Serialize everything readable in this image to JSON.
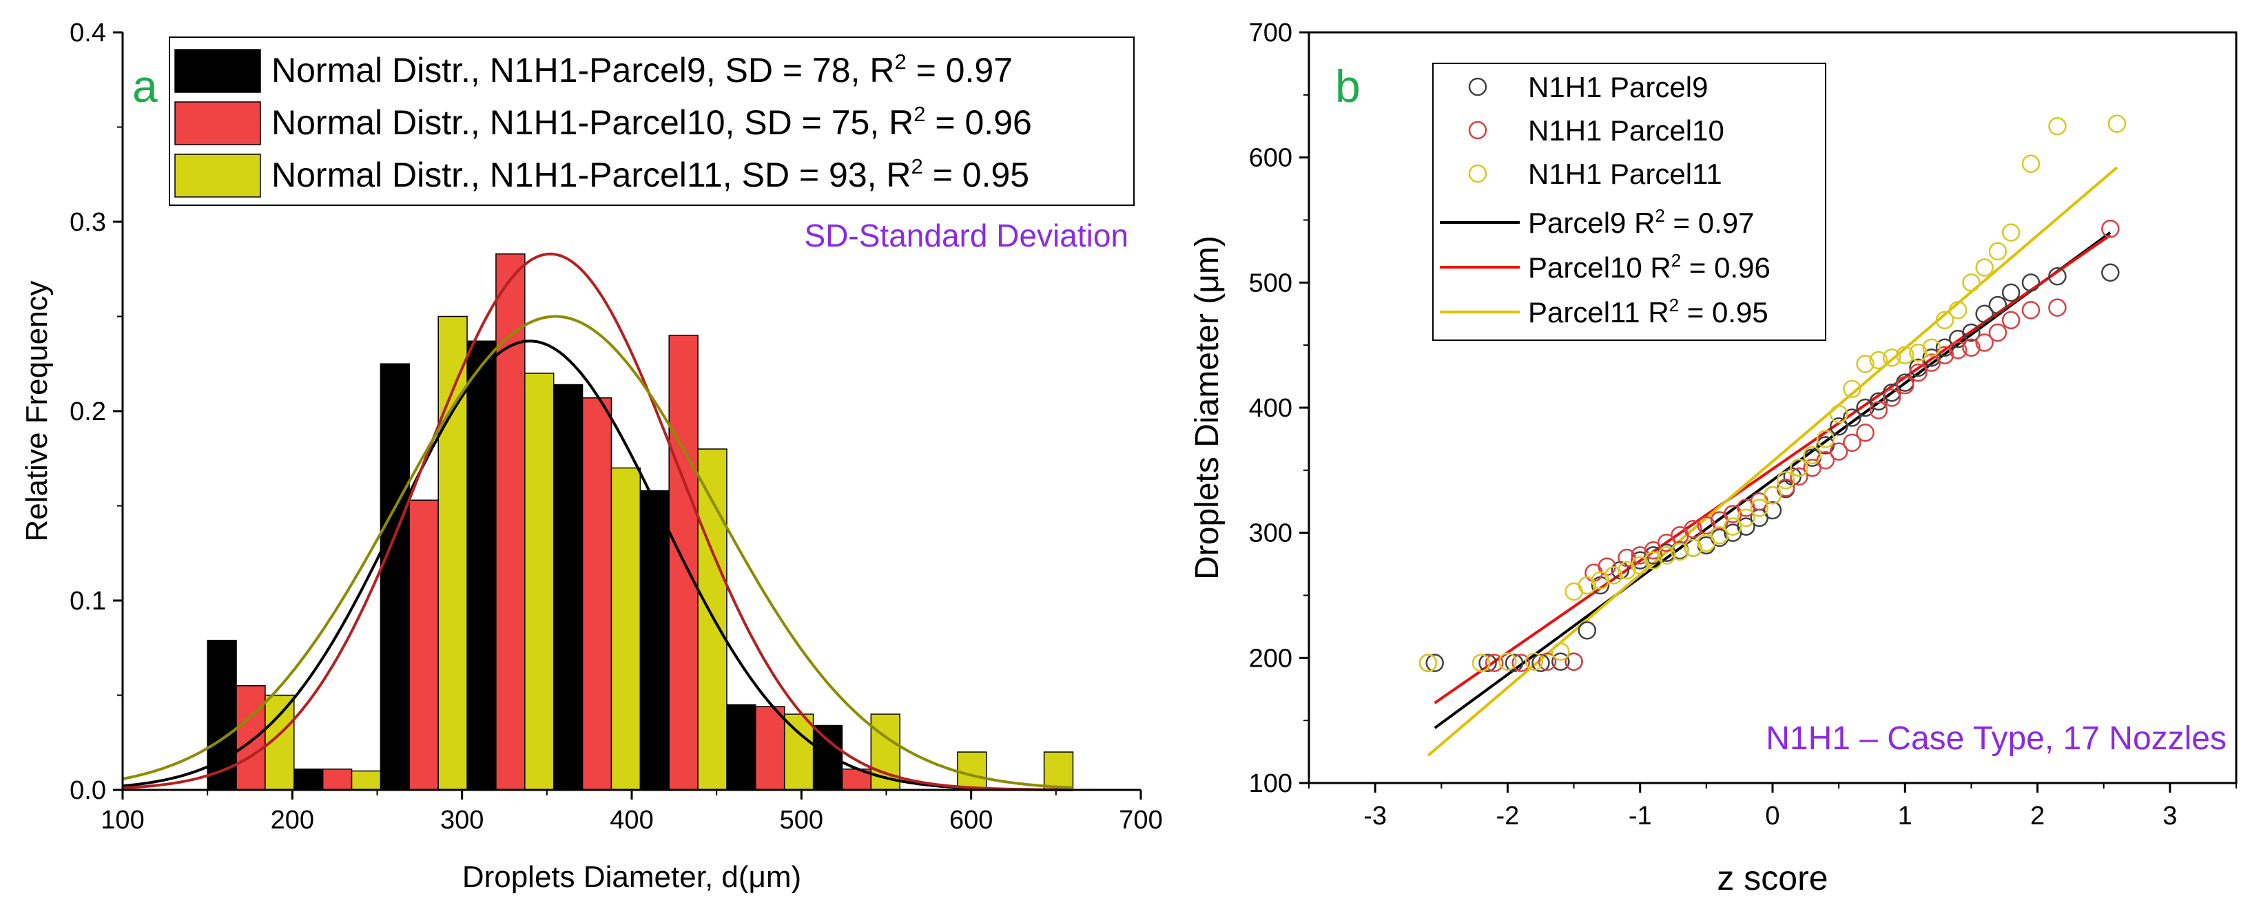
{
  "chart_data": [
    {
      "type": "bar",
      "panel_label": "a",
      "xlabel": "Droplets Diameter, d(μm)",
      "ylabel": "Relative Frequency",
      "xlim": [
        100,
        700
      ],
      "ylim": [
        0,
        0.4
      ],
      "xticks": [
        100,
        200,
        300,
        400,
        500,
        600,
        700
      ],
      "yticks": [
        0.0,
        0.1,
        0.2,
        0.3,
        0.4
      ],
      "xtick_labels": [
        "100",
        "200",
        "300",
        "400",
        "500",
        "600",
        "700"
      ],
      "ytick_labels": [
        "0.0",
        "0.1",
        "0.2",
        "0.3",
        "0.4"
      ],
      "annotation": "SD-Standard Deviation",
      "bin_width": 17,
      "series": [
        {
          "name": "N1H1-Parcel9",
          "legend_label": "Normal Distr., N1H1-Parcel9, SD = 78, R",
          "legend_suffix": " = 0.97",
          "color": "#000000",
          "bar_left": [
            150,
            201,
            252,
            303,
            354,
            405,
            456,
            507
          ],
          "values": [
            0.079,
            0.011,
            0.225,
            0.237,
            0.214,
            0.158,
            0.045,
            0.034
          ],
          "fit": {
            "mean": 340,
            "sd": 78,
            "peak": 0.237
          }
        },
        {
          "name": "N1H1-Parcel10",
          "legend_label": "Normal Distr., N1H1-Parcel10, SD = 75, R",
          "legend_suffix": " = 0.96",
          "color": "#f04343",
          "bar_left": [
            167,
            218,
            269,
            320,
            371,
            422,
            473,
            524
          ],
          "values": [
            0.055,
            0.011,
            0.153,
            0.283,
            0.207,
            0.24,
            0.044,
            0.011
          ],
          "fit": {
            "mean": 352,
            "sd": 75,
            "peak": 0.283
          }
        },
        {
          "name": "N1H1-Parcel11",
          "legend_label": "Normal Distr., N1H1-Parcel11, SD = 93, R",
          "legend_suffix": " = 0.95",
          "color": "#d4d414",
          "bar_left": [
            184,
            235,
            286,
            337,
            388,
            439,
            490,
            541,
            592,
            643
          ],
          "values": [
            0.05,
            0.01,
            0.25,
            0.22,
            0.17,
            0.18,
            0.04,
            0.04,
            0.02,
            0.02
          ],
          "fit": {
            "mean": 355,
            "sd": 93,
            "peak": 0.25
          }
        }
      ],
      "fit_colors": [
        "#000000",
        "#b22222",
        "#8c8c00"
      ]
    },
    {
      "type": "scatter",
      "panel_label": "b",
      "xlabel": "z score",
      "ylabel": "Droplets Diameter (μm)",
      "xlim": [
        -3.5,
        3.5
      ],
      "ylim": [
        100,
        700
      ],
      "xticks": [
        -3,
        -2,
        -1,
        0,
        1,
        2,
        3
      ],
      "yticks": [
        100,
        200,
        300,
        400,
        500,
        600,
        700
      ],
      "xtick_labels": [
        "-3",
        "-2",
        "-1",
        "0",
        "1",
        "2",
        "3"
      ],
      "ytick_labels": [
        "100",
        "200",
        "300",
        "400",
        "500",
        "600",
        "700"
      ],
      "annotation": "N1H1 – Case Type, 17 Nozzles",
      "series": [
        {
          "name": "N1H1 Parcel9",
          "color": "#404040",
          "points": [
            [
              -2.55,
              196
            ],
            [
              -2.15,
              196
            ],
            [
              -1.95,
              196
            ],
            [
              -1.75,
              196
            ],
            [
              -1.6,
              197
            ],
            [
              -1.5,
              197
            ],
            [
              -1.4,
              222
            ],
            [
              -1.3,
              258
            ],
            [
              -1.15,
              270
            ],
            [
              -1.0,
              278
            ],
            [
              -0.9,
              282
            ],
            [
              -0.8,
              284
            ],
            [
              -0.7,
              286
            ],
            [
              -0.6,
              288
            ],
            [
              -0.5,
              290
            ],
            [
              -0.4,
              296
            ],
            [
              -0.3,
              300
            ],
            [
              -0.2,
              305
            ],
            [
              -0.1,
              312
            ],
            [
              0.0,
              318
            ],
            [
              0.1,
              335
            ],
            [
              0.15,
              345
            ],
            [
              0.2,
              352
            ],
            [
              0.3,
              360
            ],
            [
              0.4,
              370
            ],
            [
              0.5,
              385
            ],
            [
              0.6,
              392
            ],
            [
              0.7,
              400
            ],
            [
              0.8,
              405
            ],
            [
              0.9,
              412
            ],
            [
              1.0,
              420
            ],
            [
              1.1,
              432
            ],
            [
              1.2,
              440
            ],
            [
              1.3,
              448
            ],
            [
              1.4,
              455
            ],
            [
              1.5,
              460
            ],
            [
              1.6,
              475
            ],
            [
              1.7,
              482
            ],
            [
              1.8,
              492
            ],
            [
              1.95,
              500
            ],
            [
              2.15,
              505
            ],
            [
              2.55,
              508
            ]
          ],
          "fit_line": {
            "label": "Parcel9 R",
            "suffix": " = 0.97",
            "color": "#000000",
            "x": [
              -2.55,
              2.55
            ],
            "y": [
              144,
              540
            ]
          }
        },
        {
          "name": "N1H1 Parcel10",
          "color": "#d84040",
          "points": [
            [
              -2.6,
              196
            ],
            [
              -2.1,
              196
            ],
            [
              -1.9,
              196
            ],
            [
              -1.7,
              197
            ],
            [
              -1.5,
              197
            ],
            [
              -1.35,
              268
            ],
            [
              -1.25,
              273
            ],
            [
              -1.1,
              280
            ],
            [
              -1.0,
              282
            ],
            [
              -0.9,
              286
            ],
            [
              -0.8,
              292
            ],
            [
              -0.7,
              298
            ],
            [
              -0.6,
              303
            ],
            [
              -0.5,
              306
            ],
            [
              -0.4,
              310
            ],
            [
              -0.3,
              315
            ],
            [
              -0.2,
              320
            ],
            [
              -0.1,
              325
            ],
            [
              0.0,
              330
            ],
            [
              0.1,
              336
            ],
            [
              0.2,
              345
            ],
            [
              0.3,
              352
            ],
            [
              0.4,
              358
            ],
            [
              0.5,
              365
            ],
            [
              0.6,
              372
            ],
            [
              0.7,
              380
            ],
            [
              0.8,
              398
            ],
            [
              0.9,
              408
            ],
            [
              1.0,
              418
            ],
            [
              1.1,
              428
            ],
            [
              1.2,
              436
            ],
            [
              1.3,
              442
            ],
            [
              1.4,
              446
            ],
            [
              1.5,
              448
            ],
            [
              1.6,
              452
            ],
            [
              1.7,
              460
            ],
            [
              1.8,
              470
            ],
            [
              1.95,
              478
            ],
            [
              2.15,
              480
            ],
            [
              2.55,
              543
            ]
          ],
          "fit_line": {
            "label": "Parcel10 R",
            "suffix": " = 0.96",
            "color": "#e81010",
            "x": [
              -2.55,
              2.55
            ],
            "y": [
              164,
              538
            ]
          }
        },
        {
          "name": "N1H1 Parcel11",
          "color": "#d8c820",
          "points": [
            [
              -2.6,
              196
            ],
            [
              -2.2,
              196
            ],
            [
              -2.0,
              197
            ],
            [
              -1.8,
              197
            ],
            [
              -1.6,
              205
            ],
            [
              -1.5,
              253
            ],
            [
              -1.4,
              258
            ],
            [
              -1.3,
              262
            ],
            [
              -1.2,
              266
            ],
            [
              -1.1,
              270
            ],
            [
              -1.0,
              274
            ],
            [
              -0.9,
              278
            ],
            [
              -0.8,
              282
            ],
            [
              -0.7,
              285
            ],
            [
              -0.6,
              288
            ],
            [
              -0.5,
              292
            ],
            [
              -0.4,
              298
            ],
            [
              -0.3,
              305
            ],
            [
              -0.2,
              312
            ],
            [
              -0.1,
              320
            ],
            [
              0.0,
              330
            ],
            [
              0.1,
              342
            ],
            [
              0.2,
              352
            ],
            [
              0.3,
              362
            ],
            [
              0.4,
              375
            ],
            [
              0.5,
              395
            ],
            [
              0.6,
              415
            ],
            [
              0.7,
              435
            ],
            [
              0.8,
              438
            ],
            [
              0.9,
              440
            ],
            [
              1.0,
              442
            ],
            [
              1.1,
              444
            ],
            [
              1.2,
              448
            ],
            [
              1.3,
              470
            ],
            [
              1.4,
              478
            ],
            [
              1.5,
              500
            ],
            [
              1.6,
              512
            ],
            [
              1.7,
              525
            ],
            [
              1.8,
              540
            ],
            [
              1.95,
              595
            ],
            [
              2.15,
              625
            ],
            [
              2.6,
              627
            ]
          ],
          "fit_line": {
            "label": "Parcel11 R",
            "suffix": " = 0.95",
            "color": "#e0c000",
            "x": [
              -2.6,
              2.6
            ],
            "y": [
              122,
              592
            ]
          }
        }
      ]
    }
  ]
}
